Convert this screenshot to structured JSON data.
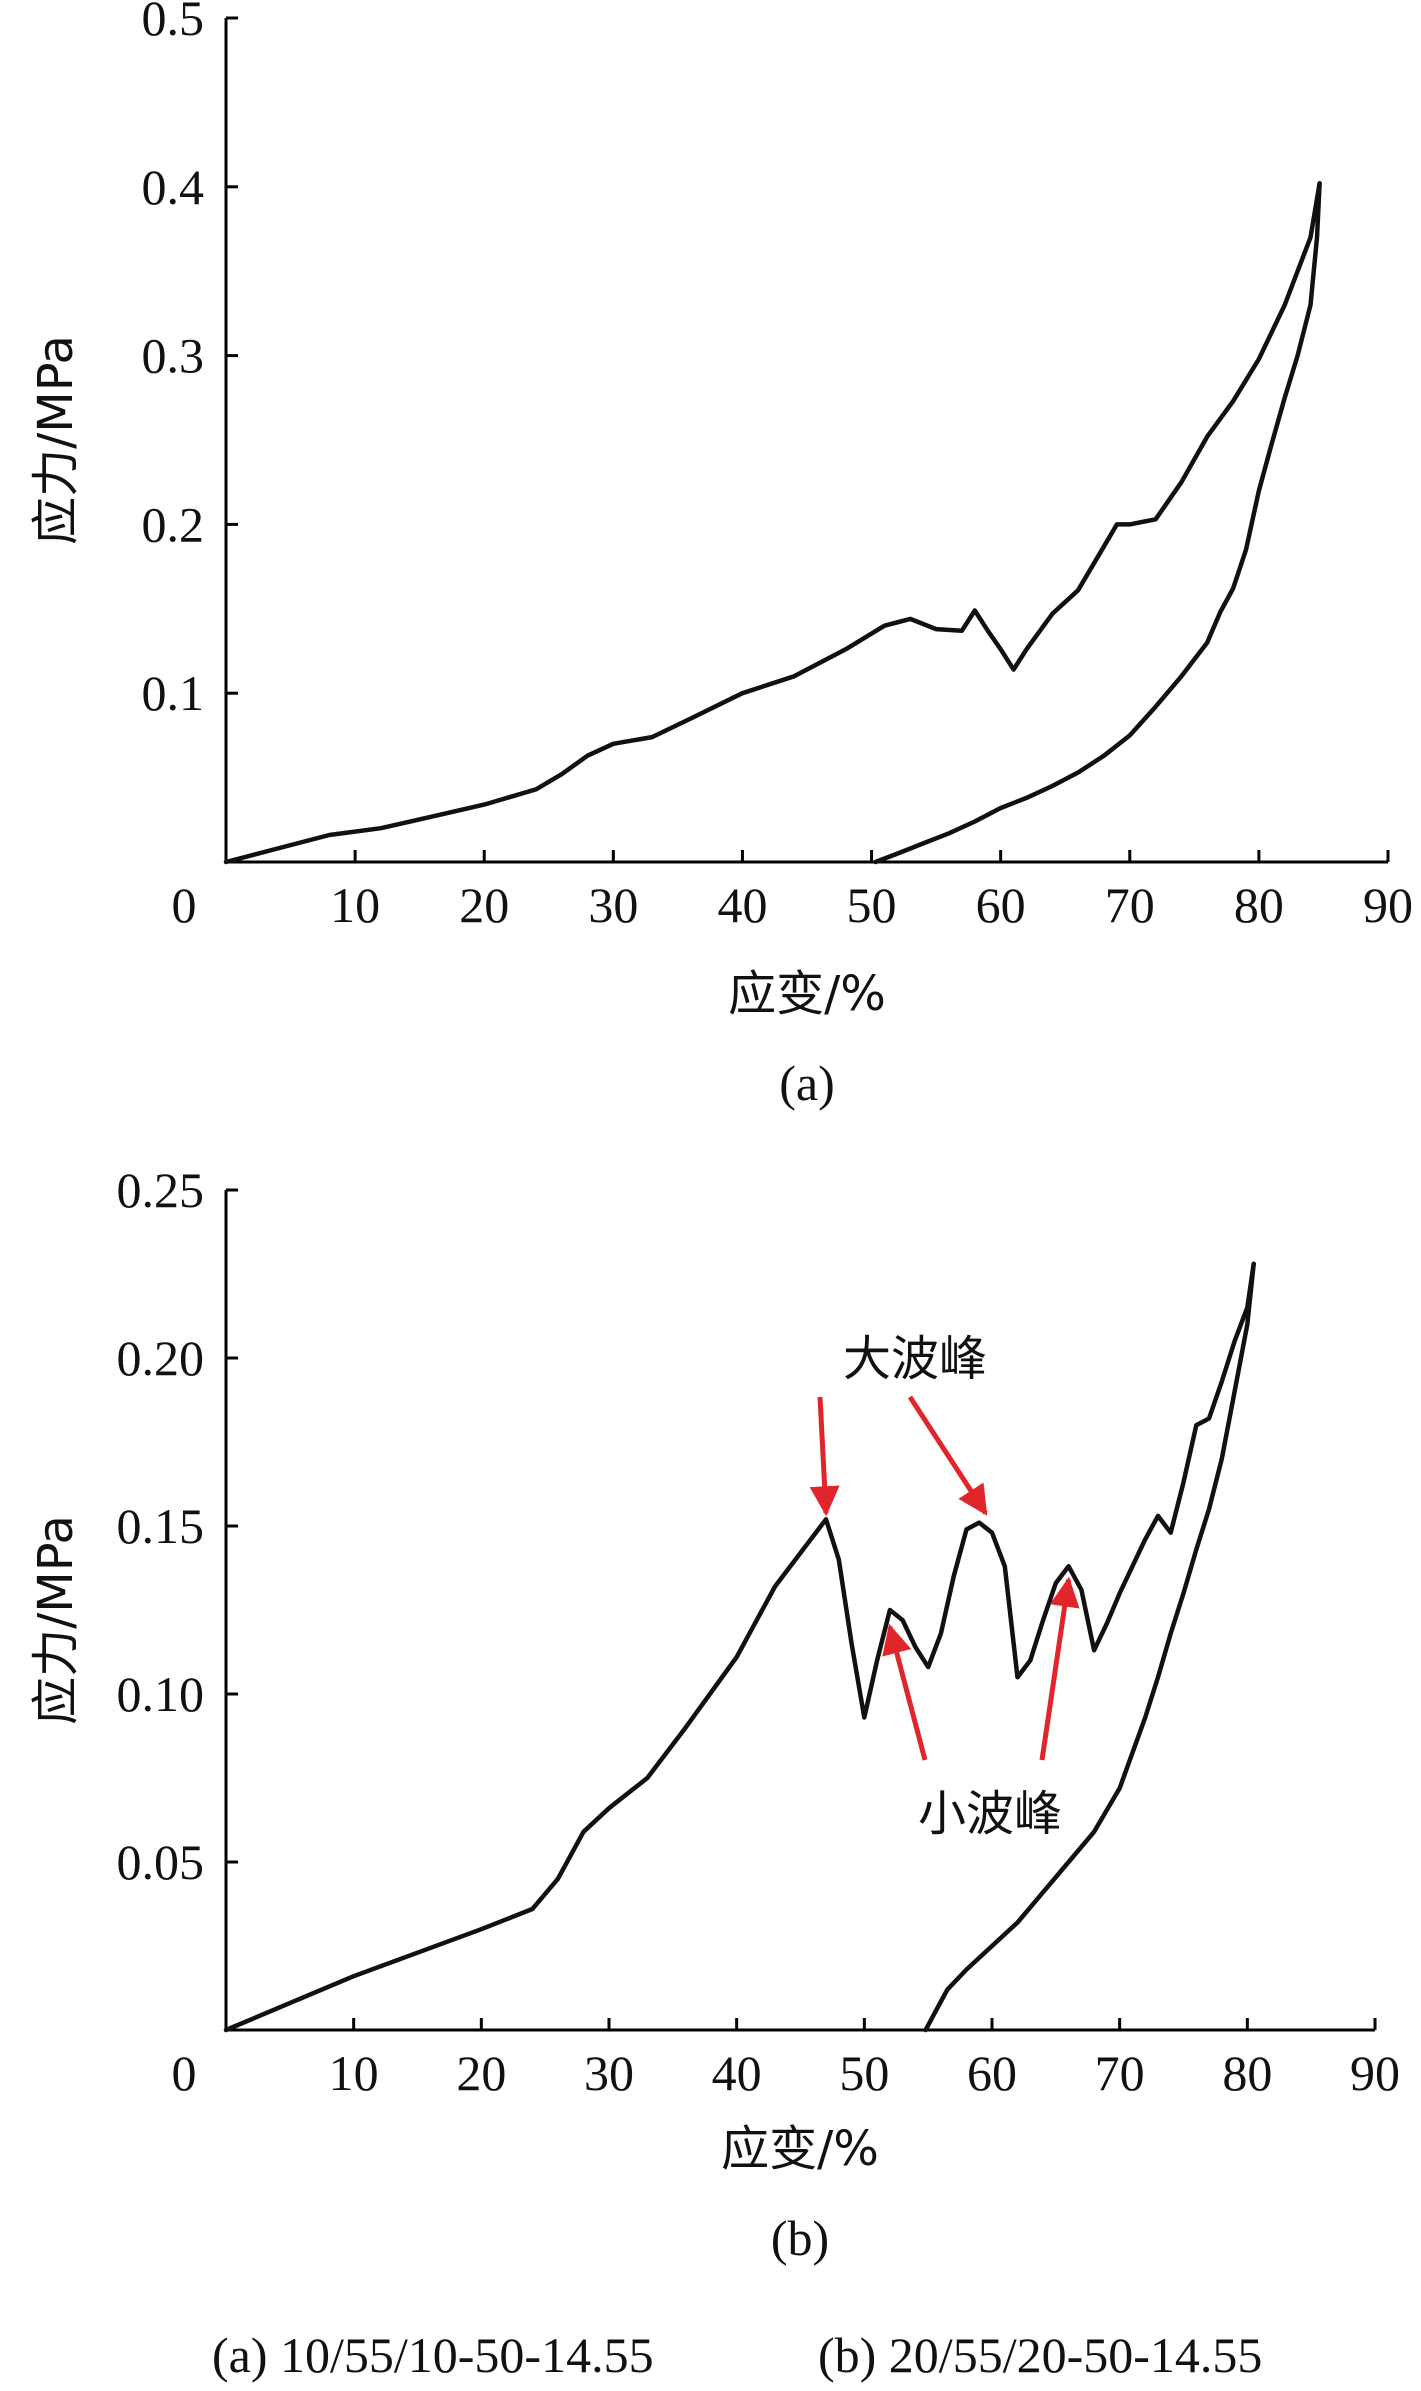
{
  "chart_data": [
    {
      "type": "line",
      "panel_label": "(a)",
      "xlabel": "应变/%",
      "ylabel": "应力/MPa",
      "xlim": [
        0,
        90
      ],
      "ylim": [
        0,
        0.5
      ],
      "x_ticks": [
        "0",
        "10",
        "20",
        "30",
        "40",
        "50",
        "60",
        "70",
        "80",
        "90"
      ],
      "y_ticks": [
        "0.1",
        "0.2",
        "0.3",
        "0.4",
        "0.5"
      ],
      "grid": false,
      "series": [
        {
          "segment": "loading",
          "x": [
            0,
            4,
            8,
            12,
            16,
            20,
            24,
            26,
            28,
            30,
            33,
            36,
            40,
            44,
            48,
            51,
            53,
            55,
            57,
            58,
            59,
            60,
            61,
            62,
            64,
            66,
            68,
            69,
            70,
            72,
            74,
            76,
            78,
            80,
            82,
            84,
            84.7
          ],
          "y": [
            0,
            0.008,
            0.016,
            0.02,
            0.027,
            0.034,
            0.043,
            0.052,
            0.063,
            0.07,
            0.074,
            0.085,
            0.1,
            0.11,
            0.126,
            0.14,
            0.144,
            0.138,
            0.137,
            0.149,
            0.137,
            0.126,
            0.114,
            0.126,
            0.147,
            0.161,
            0.187,
            0.2,
            0.2,
            0.203,
            0.225,
            0.252,
            0.273,
            0.298,
            0.33,
            0.37,
            0.402
          ]
        },
        {
          "segment": "unloading",
          "x": [
            84.7,
            84.5,
            84,
            83,
            82,
            81,
            80,
            79,
            78,
            77,
            76,
            74,
            72,
            70,
            68,
            66,
            64,
            62,
            60,
            58,
            56,
            54,
            52,
            50.3
          ],
          "y": [
            0.402,
            0.37,
            0.33,
            0.3,
            0.275,
            0.248,
            0.22,
            0.185,
            0.162,
            0.148,
            0.13,
            0.11,
            0.092,
            0.075,
            0.063,
            0.053,
            0.045,
            0.038,
            0.032,
            0.024,
            0.017,
            0.011,
            0.005,
            0
          ]
        }
      ]
    },
    {
      "type": "line",
      "panel_label": "(b)",
      "xlabel": "应变/%",
      "ylabel": "应力/MPa",
      "xlim": [
        0,
        90
      ],
      "ylim": [
        0,
        0.25
      ],
      "x_ticks": [
        "0",
        "10",
        "20",
        "30",
        "40",
        "50",
        "60",
        "70",
        "80",
        "90"
      ],
      "y_ticks": [
        "0.05",
        "0.10",
        "0.15",
        "0.20",
        "0.25"
      ],
      "grid": false,
      "series": [
        {
          "segment": "loading",
          "x": [
            0,
            5,
            10,
            15,
            20,
            24,
            26,
            28,
            30,
            33,
            36,
            40,
            43,
            45,
            47,
            48,
            49,
            50,
            51,
            52,
            53,
            54,
            55,
            56,
            57,
            58,
            59,
            60,
            61,
            62,
            63,
            64,
            65,
            66,
            67,
            68,
            69,
            70,
            72,
            73,
            74,
            75,
            76,
            77,
            78,
            79,
            80,
            80.5
          ],
          "y": [
            0,
            0.008,
            0.016,
            0.023,
            0.03,
            0.036,
            0.045,
            0.059,
            0.066,
            0.075,
            0.09,
            0.111,
            0.132,
            0.142,
            0.152,
            0.14,
            0.115,
            0.093,
            0.11,
            0.125,
            0.122,
            0.114,
            0.108,
            0.118,
            0.135,
            0.149,
            0.151,
            0.148,
            0.138,
            0.105,
            0.11,
            0.122,
            0.133,
            0.138,
            0.131,
            0.113,
            0.121,
            0.13,
            0.146,
            0.153,
            0.148,
            0.163,
            0.18,
            0.182,
            0.193,
            0.205,
            0.215,
            0.228
          ]
        },
        {
          "segment": "unloading",
          "x": [
            80.5,
            80,
            79,
            78,
            77,
            76,
            75,
            74,
            73,
            72,
            70,
            68,
            66,
            64,
            62,
            60,
            58,
            56.5,
            55.5,
            54.8
          ],
          "y": [
            0.228,
            0.21,
            0.19,
            0.17,
            0.155,
            0.143,
            0.13,
            0.118,
            0.105,
            0.093,
            0.072,
            0.059,
            0.05,
            0.041,
            0.032,
            0.025,
            0.018,
            0.012,
            0.005,
            0
          ]
        }
      ],
      "annotations": [
        {
          "text": "大波峰",
          "color": "#e0252b",
          "points_to": [
            [
              47,
              0.152
            ],
            [
              59.5,
              0.152
            ]
          ]
        },
        {
          "text": "小波峰",
          "color": "#e0252b",
          "points_to": [
            [
              52,
              0.123
            ],
            [
              66,
              0.137
            ]
          ]
        }
      ]
    }
  ],
  "caption": {
    "left": "(a) 10/55/10-50-14.55",
    "right": "(b) 20/55/20-50-14.55"
  }
}
